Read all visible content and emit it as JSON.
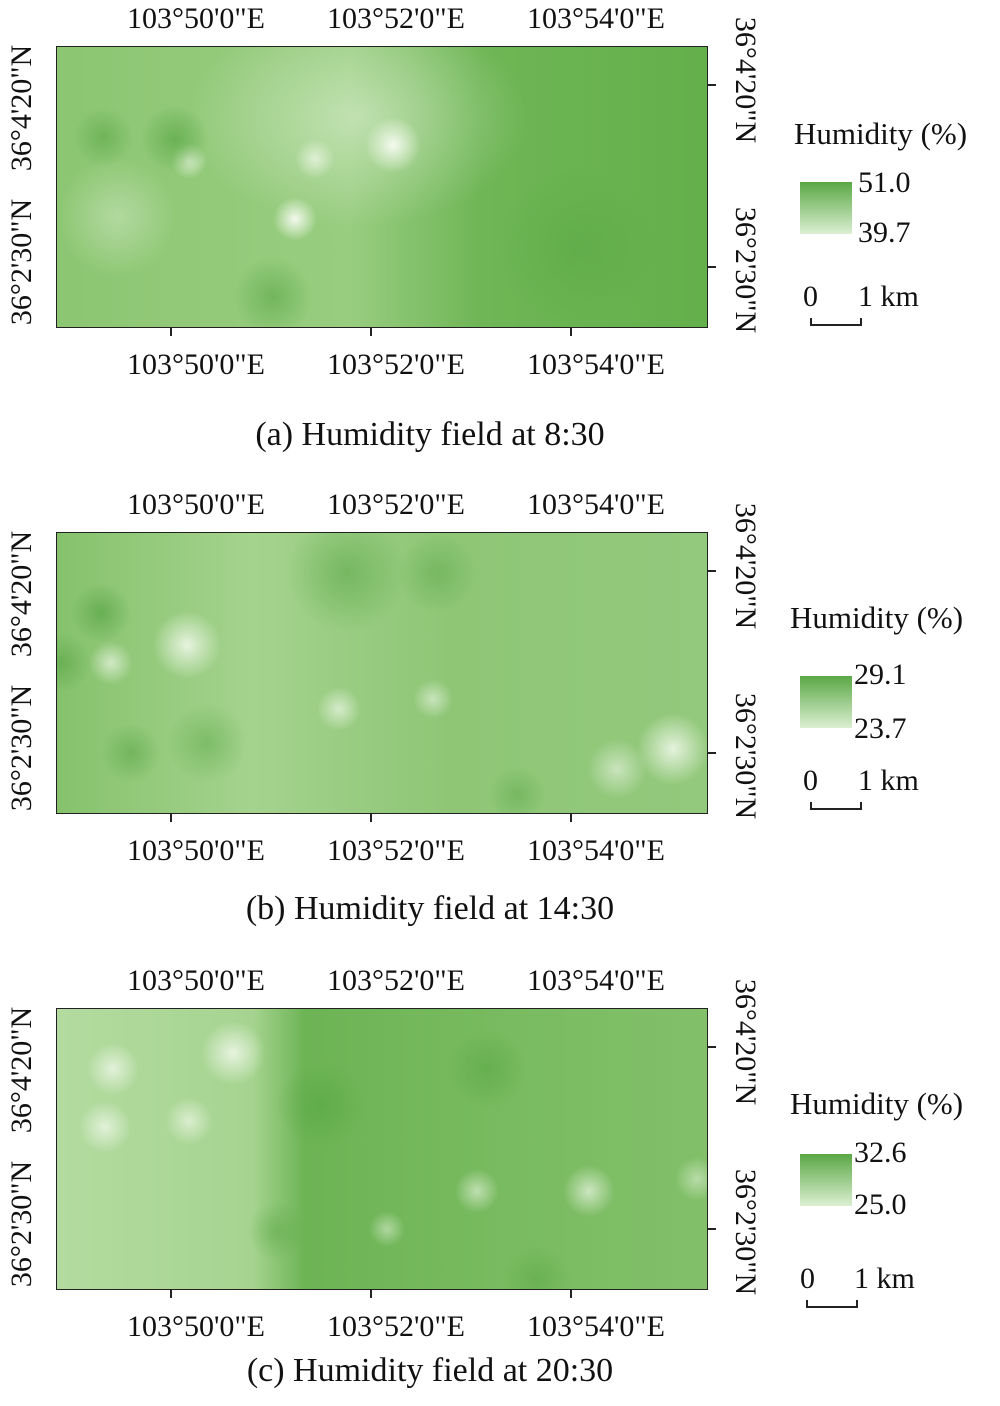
{
  "axes": {
    "lon_ticks": [
      "103°50'0\"E",
      "103°52'0\"E",
      "103°54'0\"E"
    ],
    "lat_ticks": [
      "36°4'20\"N",
      "36°2'30\"N"
    ]
  },
  "legend": {
    "title": "Humidity (%)",
    "scale_zero": "0",
    "scale_label": "1 km"
  },
  "colors": {
    "high": "#5aa845",
    "low": "#dcefd2",
    "base": "#7dbd62"
  },
  "panels": [
    {
      "caption": "(a) Humidity field at 8:30",
      "legend_max": "51.0",
      "legend_min": "39.7"
    },
    {
      "caption": "(b) Humidity field at 14:30",
      "legend_max": "29.1",
      "legend_min": "23.7"
    },
    {
      "caption": "(c) Humidity field at 20:30",
      "legend_max": "32.6",
      "legend_min": "25.0"
    }
  ]
}
